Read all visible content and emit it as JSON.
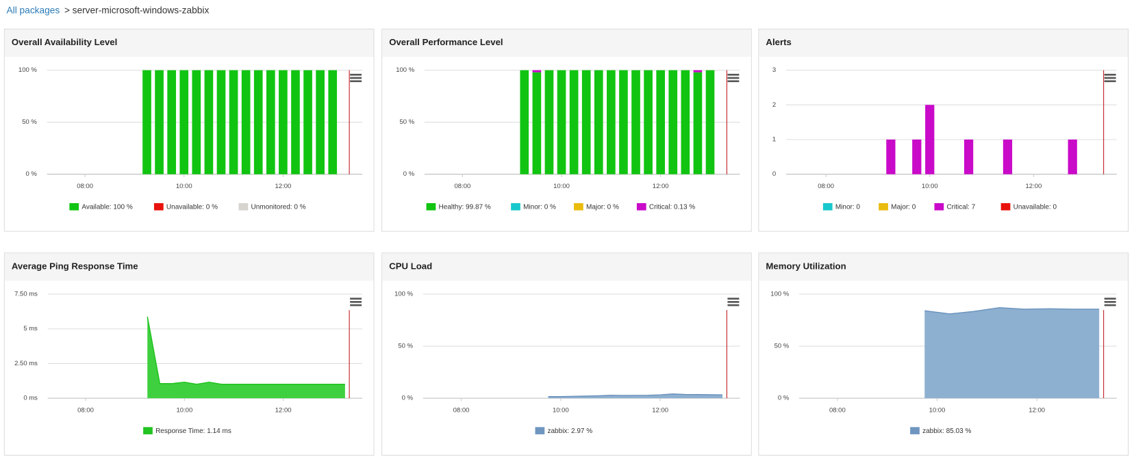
{
  "breadcrumb": {
    "link": "All packages",
    "separator": ">",
    "current": "server-microsoft-windows-zabbix"
  },
  "chart_data": [
    {
      "type": "bar",
      "title": "Overall Availability Level",
      "x": [
        "09:15",
        "09:30",
        "09:45",
        "10:00",
        "10:15",
        "10:30",
        "10:45",
        "11:00",
        "11:15",
        "11:30",
        "11:45",
        "12:00",
        "12:15",
        "12:30",
        "12:45",
        "13:00"
      ],
      "series": [
        {
          "name": "Available: 100 %",
          "color": "#11c411",
          "values": [
            100,
            100,
            100,
            100,
            100,
            100,
            100,
            100,
            100,
            100,
            100,
            100,
            100,
            100,
            100,
            100
          ]
        },
        {
          "name": "Unavailable: 0 %",
          "color": "#e8120c",
          "values": [
            0,
            0,
            0,
            0,
            0,
            0,
            0,
            0,
            0,
            0,
            0,
            0,
            0,
            0,
            0,
            0
          ]
        },
        {
          "name": "Unmonitored: 0 %",
          "color": "#d7d3cf",
          "values": [
            0,
            0,
            0,
            0,
            0,
            0,
            0,
            0,
            0,
            0,
            0,
            0,
            0,
            0,
            0,
            0
          ]
        }
      ],
      "xlim": [
        "07:14",
        "13:36"
      ],
      "xticks": [
        "08:00",
        "10:00",
        "12:00"
      ],
      "ylim": [
        0,
        100
      ],
      "yticks": [
        {
          "value": 0,
          "label": "0 %"
        },
        {
          "value": 50,
          "label": "50 %"
        },
        {
          "value": 100,
          "label": "100 %"
        }
      ],
      "grid": true
    },
    {
      "type": "bar",
      "title": "Overall Performance Level",
      "x": [
        "09:15",
        "09:30",
        "09:45",
        "10:00",
        "10:15",
        "10:30",
        "10:45",
        "11:00",
        "11:15",
        "11:30",
        "11:45",
        "12:00",
        "12:15",
        "12:30",
        "12:45",
        "13:00"
      ],
      "series": [
        {
          "name": "Healthy: 99.87 %",
          "color": "#11c411",
          "values": [
            100,
            98,
            100,
            100,
            100,
            100,
            100,
            100,
            100,
            100,
            100,
            100,
            100,
            100,
            98,
            100
          ]
        },
        {
          "name": "Minor: 0 %",
          "color": "#18c8cc",
          "values": [
            0,
            0,
            0,
            0,
            0,
            0,
            0,
            0,
            0,
            0,
            0,
            0,
            0,
            0,
            0,
            0
          ]
        },
        {
          "name": "Major: 0 %",
          "color": "#e9bc0e",
          "values": [
            0,
            0,
            0,
            0,
            0,
            0,
            0,
            0,
            0,
            0,
            0,
            0,
            0,
            0,
            0,
            0
          ]
        },
        {
          "name": "Critical: 0.13 %",
          "color": "#c90ac9",
          "values": [
            0,
            2,
            0,
            0,
            0,
            0,
            0,
            0,
            0,
            0,
            0,
            0,
            0,
            0,
            2,
            0
          ]
        }
      ],
      "xlim": [
        "07:14",
        "13:36"
      ],
      "xticks": [
        "08:00",
        "10:00",
        "12:00"
      ],
      "ylim": [
        0,
        100
      ],
      "yticks": [
        {
          "value": 0,
          "label": "0 %"
        },
        {
          "value": 50,
          "label": "50 %"
        },
        {
          "value": 100,
          "label": "100 %"
        }
      ],
      "grid": true
    },
    {
      "type": "bar",
      "title": "Alerts",
      "x": [
        "09:15",
        "09:45",
        "10:00",
        "10:45",
        "11:30",
        "12:45"
      ],
      "series": [
        {
          "name": "Minor: 0",
          "color": "#18c8cc",
          "values": [
            0,
            0,
            0,
            0,
            0,
            0
          ]
        },
        {
          "name": "Major: 0",
          "color": "#e9bc0e",
          "values": [
            0,
            0,
            0,
            0,
            0,
            0
          ]
        },
        {
          "name": "Critical: 7",
          "color": "#c90ac9",
          "values": [
            1,
            1,
            2,
            1,
            1,
            1
          ]
        },
        {
          "name": "Unavailable: 0",
          "color": "#e8120c",
          "values": [
            0,
            0,
            0,
            0,
            0,
            0
          ]
        }
      ],
      "xlim": [
        "07:14",
        "13:36"
      ],
      "xticks": [
        "08:00",
        "10:00",
        "12:00"
      ],
      "ylim": [
        0,
        3
      ],
      "yticks": [
        0,
        1,
        2,
        3
      ],
      "grid": true
    },
    {
      "type": "area",
      "title": "Average Ping Response Time",
      "x": [
        "09:15",
        "09:30",
        "09:45",
        "10:00",
        "10:15",
        "10:30",
        "10:45",
        "11:00",
        "11:15",
        "11:30",
        "11:45",
        "12:00",
        "12:15",
        "12:30",
        "12:45",
        "13:00",
        "13:15"
      ],
      "series": [
        {
          "name": "Response Time: 1.14 ms",
          "color": "#22c322",
          "fill": "#3fd03f",
          "values": [
            5.87,
            1.05,
            1.05,
            1.15,
            1.0,
            1.15,
            1.0,
            1.0,
            1.0,
            1.0,
            1.0,
            1.0,
            1.0,
            1.0,
            1.0,
            1.0,
            1.0
          ]
        }
      ],
      "xlim": [
        "07:14",
        "13:36"
      ],
      "xticks": [
        "08:00",
        "10:00",
        "12:00"
      ],
      "ylim": [
        0,
        7.5
      ],
      "yticks": [
        {
          "value": 0,
          "label": "0 ms"
        },
        {
          "value": 2.5,
          "label": "2.50 ms"
        },
        {
          "value": 5,
          "label": "5 ms"
        },
        {
          "value": 7.5,
          "label": "7.50 ms"
        }
      ],
      "grid": true
    },
    {
      "type": "area",
      "title": "CPU Load",
      "x": [
        "09:45",
        "10:00",
        "10:15",
        "10:30",
        "10:45",
        "11:00",
        "11:15",
        "11:30",
        "11:45",
        "12:00",
        "12:15",
        "12:30",
        "12:45",
        "13:00",
        "13:15"
      ],
      "series": [
        {
          "name": "zabbix: 2.97 %",
          "color": "#6f96bf",
          "fill": "#8eb0d0",
          "values": [
            1.5,
            1.5,
            1.8,
            2.0,
            2.3,
            2.8,
            2.6,
            2.7,
            2.8,
            3.2,
            4.0,
            3.6,
            3.5,
            3.3,
            3.1
          ]
        }
      ],
      "xlim": [
        "07:14",
        "13:36"
      ],
      "xticks": [
        "08:00",
        "10:00",
        "12:00"
      ],
      "ylim": [
        0,
        100
      ],
      "yticks": [
        {
          "value": 0,
          "label": "0 %"
        },
        {
          "value": 50,
          "label": "50 %"
        },
        {
          "value": 100,
          "label": "100 %"
        }
      ],
      "grid": true
    },
    {
      "type": "area",
      "title": "Memory Utilization",
      "x": [
        "09:45",
        "10:15",
        "10:45",
        "11:15",
        "11:45",
        "12:15",
        "12:45",
        "13:15"
      ],
      "series": [
        {
          "name": "zabbix: 85.03 %",
          "color": "#6f96bf",
          "fill": "#8eb0d0",
          "values": [
            84,
            81,
            83.5,
            87,
            85.5,
            86,
            85.5,
            85.5
          ]
        }
      ],
      "xlim": [
        "07:14",
        "13:36"
      ],
      "xticks": [
        "08:00",
        "10:00",
        "12:00"
      ],
      "ylim": [
        0,
        100
      ],
      "yticks": [
        {
          "value": 0,
          "label": "0 %"
        },
        {
          "value": 50,
          "label": "50 %"
        },
        {
          "value": 100,
          "label": "100 %"
        }
      ],
      "grid": true
    }
  ]
}
